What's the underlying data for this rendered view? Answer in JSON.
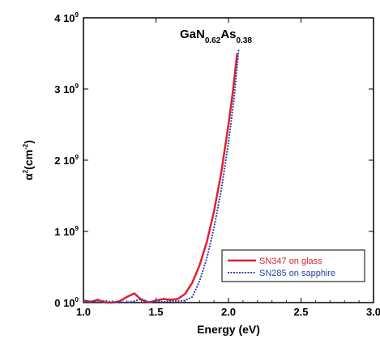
{
  "chart_data": {
    "type": "line",
    "title": "",
    "xlabel": "Energy (eV)",
    "ylabel": "α²(cm⁻²)",
    "ylabel_base": "α",
    "ylabel_exp": "2",
    "ylabel_unit": "(cm",
    "ylabel_unit_exp": "-2",
    "ylabel_close": ")",
    "xlim": [
      1.0,
      3.0
    ],
    "ylim": [
      0,
      4000000000
    ],
    "x_ticks": [
      {
        "value": 1.0,
        "label": "1.0"
      },
      {
        "value": 1.5,
        "label": "1.5"
      },
      {
        "value": 2.0,
        "label": "2.0"
      },
      {
        "value": 2.5,
        "label": "2.5"
      },
      {
        "value": 3.0,
        "label": "3.0"
      }
    ],
    "y_ticks": [
      {
        "value": 0,
        "mant": "0 10",
        "exp": "0"
      },
      {
        "value": 1000000000,
        "mant": "1 10",
        "exp": "9"
      },
      {
        "value": 2000000000,
        "mant": "2 10",
        "exp": "9"
      },
      {
        "value": 3000000000,
        "mant": "3 10",
        "exp": "9"
      },
      {
        "value": 4000000000,
        "mant": "4 10",
        "exp": "9"
      }
    ],
    "annotation": {
      "main1": "GaN",
      "sub1": "0.62",
      "main2": "As",
      "sub2": "0.38"
    },
    "legend_position": "bottom-right",
    "series": [
      {
        "name": "SN347 on glass",
        "color": "#e0202e",
        "style": "solid",
        "x": [
          1.0,
          1.05,
          1.1,
          1.15,
          1.2,
          1.25,
          1.3,
          1.35,
          1.4,
          1.45,
          1.5,
          1.55,
          1.6,
          1.65,
          1.7,
          1.75,
          1.8,
          1.85,
          1.9,
          1.95,
          2.0,
          2.03,
          2.06
        ],
        "y": [
          30000000,
          10000000,
          40000000,
          0,
          0,
          20000000,
          80000000,
          130000000,
          40000000,
          0,
          30000000,
          50000000,
          40000000,
          50000000,
          120000000,
          280000000,
          520000000,
          850000000,
          1280000000,
          1820000000,
          2500000000,
          2960000000,
          3500000000
        ]
      },
      {
        "name": "SN285 on sapphire",
        "color": "#3040a8",
        "style": "dotted",
        "x": [
          1.0,
          1.05,
          1.1,
          1.15,
          1.2,
          1.25,
          1.3,
          1.35,
          1.4,
          1.45,
          1.5,
          1.55,
          1.6,
          1.65,
          1.7,
          1.75,
          1.8,
          1.85,
          1.9,
          1.95,
          2.0,
          2.04,
          2.07
        ],
        "y": [
          0,
          20000000,
          0,
          30000000,
          0,
          10000000,
          0,
          20000000,
          50000000,
          10000000,
          20000000,
          10000000,
          20000000,
          20000000,
          30000000,
          80000000,
          300000000,
          620000000,
          1050000000,
          1580000000,
          2250000000,
          2900000000,
          3550000000
        ]
      }
    ]
  }
}
